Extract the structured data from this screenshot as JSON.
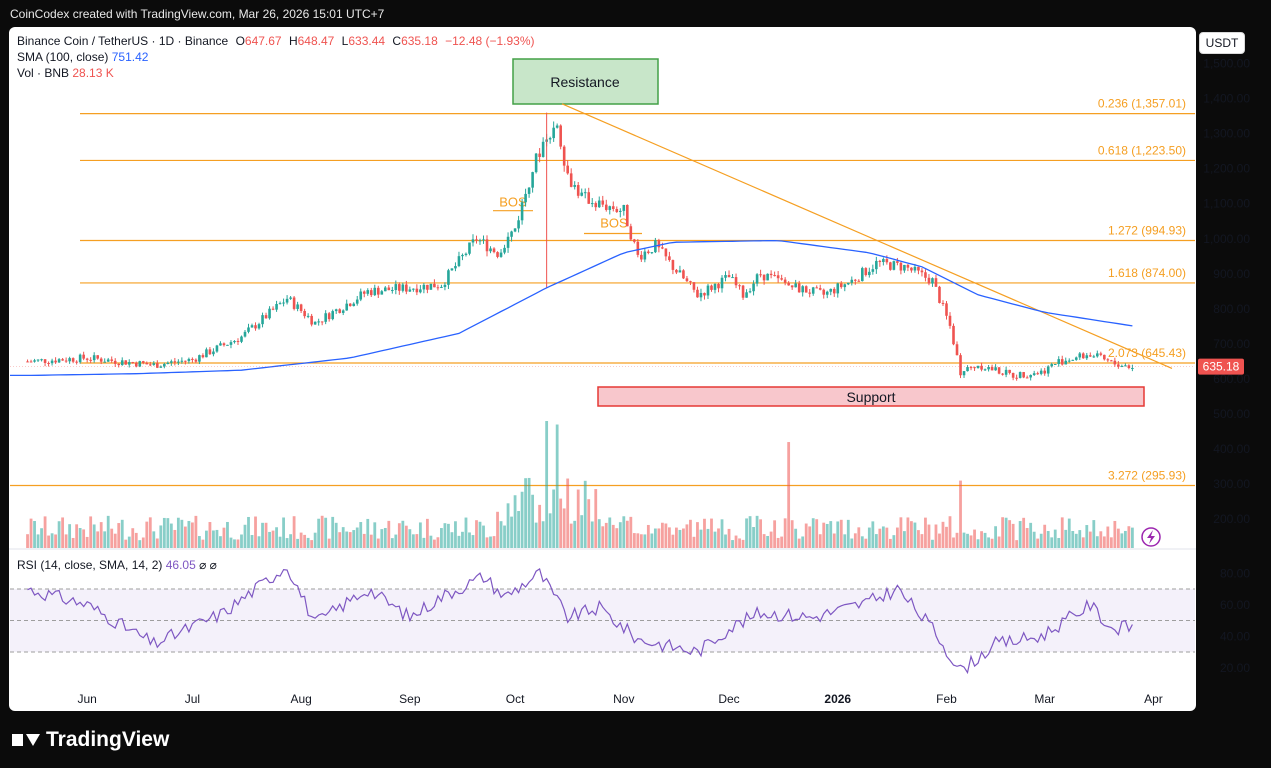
{
  "credit": "CoinCodex created with TradingView.com, Mar 26, 2026 15:01 UTC+7",
  "brand": "TradingView",
  "unit_button": "USDT",
  "legend": {
    "symbol": "Binance Coin / TetherUS · 1D · Binance",
    "open_k": "O",
    "open": "647.67",
    "high_k": "H",
    "high": "648.47",
    "low_k": "L",
    "low": "633.44",
    "close_k": "C",
    "close": "635.18",
    "change": "−12.48 (−1.93%)",
    "sma_label": "SMA (100, close)",
    "sma_value": "751.42",
    "vol_label": "Vol · BNB",
    "vol_value": "28.13 K"
  },
  "rsi_legend": {
    "label": "RSI (14, close, SMA, 14, 2)",
    "value": "46.05",
    "icons": "⌀ ⌀"
  },
  "colors": {
    "up": "#26a69a",
    "down": "#ef5350",
    "sma": "#2962ff",
    "fib": "#f59f22",
    "rsi": "#7e57c2",
    "zone_green": "#c8e6c9",
    "zone_red": "#f8c7cc"
  },
  "chart_data": {
    "type": "candlestick",
    "title": "Binance Coin / TetherUS · 1D · Binance",
    "ylim": [
      0,
      1500
    ],
    "y_ticks": [
      "200.00",
      "300.00",
      "400.00",
      "500.00",
      "600.00",
      "700.00",
      "800.00",
      "900.00",
      "1,000.00",
      "1,100.00",
      "1,200.00",
      "1,300.00",
      "1,400.00",
      "1,500.00"
    ],
    "x_ticks": [
      "Jun",
      "Jul",
      "Aug",
      "Sep",
      "Oct",
      "Nov",
      "Dec",
      "2026",
      "Feb",
      "Mar",
      "Apr"
    ],
    "last_price_label": "635.18",
    "fib_levels": [
      {
        "label": "0.236 (1,357.01)",
        "price": 1357.01
      },
      {
        "label": "0.618 (1,223.50)",
        "price": 1223.5
      },
      {
        "label": "1.272 (994.93)",
        "price": 994.93
      },
      {
        "label": "1.618 (874.00)",
        "price": 874.0
      },
      {
        "label": "2.073 (645.43)",
        "price": 645.43
      },
      {
        "label": "3.272 (295.93)",
        "price": 295.93
      }
    ],
    "annotations": {
      "resistance": "Resistance",
      "support": "Support",
      "bos1": "BOS",
      "bos2": "BOS"
    },
    "price_anchors": [
      [
        "2025-05-15",
        650
      ],
      [
        "2025-06-01",
        660
      ],
      [
        "2025-06-20",
        640
      ],
      [
        "2025-07-01",
        655
      ],
      [
        "2025-07-15",
        720
      ],
      [
        "2025-07-28",
        830
      ],
      [
        "2025-08-05",
        760
      ],
      [
        "2025-08-20",
        850
      ],
      [
        "2025-09-01",
        860
      ],
      [
        "2025-09-10",
        870
      ],
      [
        "2025-09-20",
        1000
      ],
      [
        "2025-09-26",
        960
      ],
      [
        "2025-10-01",
        1030
      ],
      [
        "2025-10-06",
        1200
      ],
      [
        "2025-10-10",
        1300
      ],
      [
        "2025-10-13",
        1330
      ],
      [
        "2025-10-16",
        1180
      ],
      [
        "2025-10-20",
        1120
      ],
      [
        "2025-10-25",
        1100
      ],
      [
        "2025-11-01",
        1080
      ],
      [
        "2025-11-05",
        950
      ],
      [
        "2025-11-10",
        980
      ],
      [
        "2025-11-15",
        920
      ],
      [
        "2025-11-22",
        840
      ],
      [
        "2025-12-01",
        890
      ],
      [
        "2025-12-05",
        840
      ],
      [
        "2025-12-10",
        900
      ],
      [
        "2025-12-20",
        860
      ],
      [
        "2025-12-28",
        840
      ],
      [
        "2026-01-05",
        880
      ],
      [
        "2026-01-12",
        930
      ],
      [
        "2026-01-20",
        920
      ],
      [
        "2026-01-28",
        880
      ],
      [
        "2026-02-02",
        750
      ],
      [
        "2026-02-05",
        620
      ],
      [
        "2026-02-10",
        640
      ],
      [
        "2026-02-20",
        610
      ],
      [
        "2026-02-28",
        620
      ],
      [
        "2026-03-05",
        650
      ],
      [
        "2026-03-14",
        670
      ],
      [
        "2026-03-20",
        645
      ],
      [
        "2026-03-26",
        635
      ]
    ],
    "sma_anchors": [
      [
        "2025-05-15",
        610
      ],
      [
        "2025-06-15",
        615
      ],
      [
        "2025-07-15",
        625
      ],
      [
        "2025-08-15",
        660
      ],
      [
        "2025-09-15",
        730
      ],
      [
        "2025-10-10",
        860
      ],
      [
        "2025-11-01",
        960
      ],
      [
        "2025-11-15",
        990
      ],
      [
        "2025-12-15",
        995
      ],
      [
        "2026-01-10",
        960
      ],
      [
        "2026-01-25",
        920
      ],
      [
        "2026-02-10",
        840
      ],
      [
        "2026-03-01",
        790
      ],
      [
        "2026-03-26",
        751.42
      ]
    ],
    "volume_spikes": [
      [
        "2025-10-10",
        480
      ],
      [
        "2025-10-13",
        470
      ],
      [
        "2025-12-18",
        420
      ],
      [
        "2026-02-05",
        310
      ]
    ],
    "rsi": {
      "ylim": [
        10,
        90
      ],
      "y_ticks": [
        "20.00",
        "40.00",
        "60.00",
        "80.00"
      ],
      "bands": [
        30,
        50,
        70
      ],
      "anchors": [
        [
          "2025-05-15",
          70
        ],
        [
          "2025-06-01",
          60
        ],
        [
          "2025-06-20",
          35
        ],
        [
          "2025-07-10",
          55
        ],
        [
          "2025-07-28",
          85
        ],
        [
          "2025-08-05",
          48
        ],
        [
          "2025-08-20",
          70
        ],
        [
          "2025-09-01",
          52
        ],
        [
          "2025-09-10",
          65
        ],
        [
          "2025-09-22",
          78
        ],
        [
          "2025-09-28",
          65
        ],
        [
          "2025-10-08",
          80
        ],
        [
          "2025-10-16",
          52
        ],
        [
          "2025-10-25",
          58
        ],
        [
          "2025-11-05",
          38
        ],
        [
          "2025-11-22",
          30
        ],
        [
          "2025-12-01",
          45
        ],
        [
          "2025-12-10",
          55
        ],
        [
          "2025-12-25",
          52
        ],
        [
          "2026-01-10",
          62
        ],
        [
          "2026-01-18",
          70
        ],
        [
          "2026-01-28",
          45
        ],
        [
          "2026-02-05",
          18
        ],
        [
          "2026-02-15",
          35
        ],
        [
          "2026-02-28",
          40
        ],
        [
          "2026-03-14",
          60
        ],
        [
          "2026-03-20",
          45
        ],
        [
          "2026-03-26",
          46.05
        ]
      ],
      "value": 46.05
    }
  }
}
